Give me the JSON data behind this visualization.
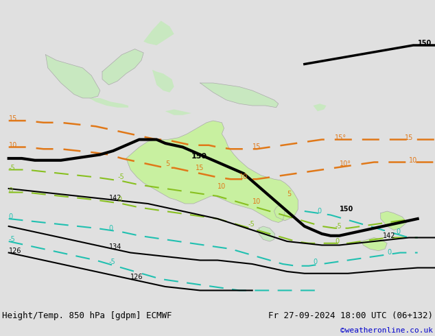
{
  "title_left": "Height/Temp. 850 hPa [gdpm] ECMWF",
  "title_right": "Fr 27-09-2024 18:00 UTC (06+132)",
  "credit": "©weatheronline.co.uk",
  "bg_color": "#e0e0e0",
  "land_color_aus": "#c8f0a0",
  "land_color_other": "#c8e8c0",
  "land_color_outline": "#aaaaaa",
  "black": "#000000",
  "orange": "#e07818",
  "green_t": "#88c020",
  "cyan_t": "#20c0b0",
  "figsize": [
    6.34,
    4.9
  ],
  "dpi": 100,
  "footer_left": "Height/Temp. 850 hPa [gdpm] ECMWF",
  "footer_right": "Fr 27-09-2024 18:00 UTC (06+132)",
  "credit_text": "©weatheronline.co.uk",
  "credit_color": "#0000cc"
}
